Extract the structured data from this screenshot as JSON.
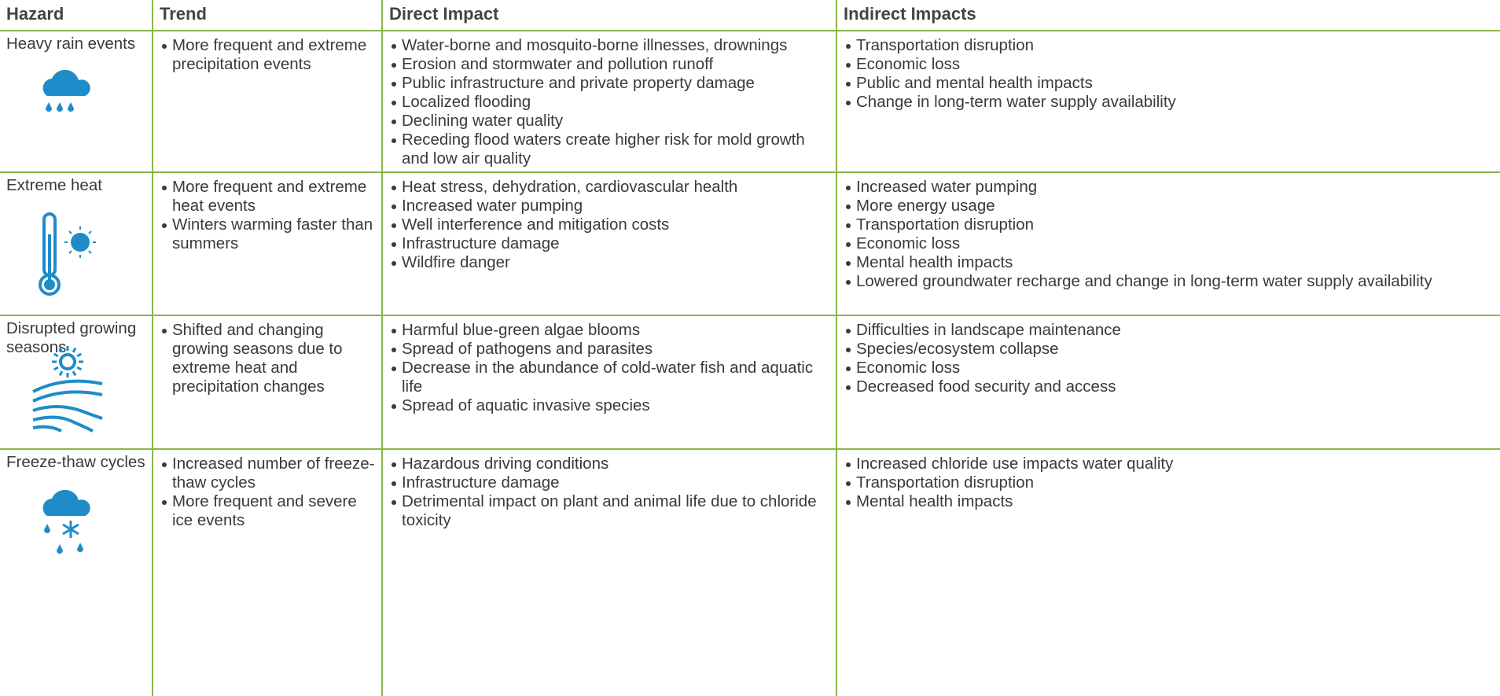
{
  "table": {
    "columns": [
      "Hazard",
      "Trend",
      "Direct Impact",
      "Indirect Impacts"
    ],
    "rows": [
      {
        "hazard": "Heavy rain events",
        "trend": [
          "More frequent and extreme precipitation events"
        ],
        "direct": [
          "Water-borne and mosquito-borne illnesses, drownings",
          "Erosion and stormwater and pollution runoff",
          "Public infrastructure and private property damage",
          "Localized flooding",
          "Declining water quality",
          "Receding flood waters create higher risk for mold growth and low air quality"
        ],
        "indirect": [
          "Transportation disruption",
          "Economic loss",
          "Public and mental health impacts",
          "Change in long-term water supply availability"
        ]
      },
      {
        "hazard": "Extreme heat",
        "trend": [
          "More frequent and extreme heat events",
          "Winters warming faster than summers"
        ],
        "direct": [
          "Heat stress, dehydration, cardiovascular health",
          "Increased water pumping",
          "Well interference and mitigation costs",
          "Infrastructure damage",
          "Wildfire danger"
        ],
        "indirect": [
          "Increased water pumping",
          "More energy usage",
          "Transportation disruption",
          "Economic loss",
          "Mental health impacts",
          "Lowered groundwater recharge and change in long-term water supply availability"
        ]
      },
      {
        "hazard": "Disrupted growing seasons",
        "trend": [
          "Shifted and changing growing seasons due to extreme heat and precipitation changes"
        ],
        "direct": [
          "Harmful blue-green algae blooms",
          "Spread of pathogens and parasites",
          "Decrease in the abundance of cold-water fish and aquatic life",
          "Spread of aquatic invasive species"
        ],
        "indirect": [
          "Difficulties in landscape maintenance",
          "Species/ecosystem collapse",
          "Economic loss",
          "Decreased food security and access"
        ]
      },
      {
        "hazard": "Freeze-thaw cycles",
        "trend": [
          "Increased number of freeze-thaw cycles",
          "More frequent and severe ice events"
        ],
        "direct": [
          "Hazardous driving conditions",
          "Infrastructure damage",
          "Detrimental impact on plant and animal life due to chloride toxicity"
        ],
        "indirect": [
          "Increased chloride use impacts water quality",
          "Transportation disruption",
          "Mental health impacts"
        ]
      }
    ]
  }
}
